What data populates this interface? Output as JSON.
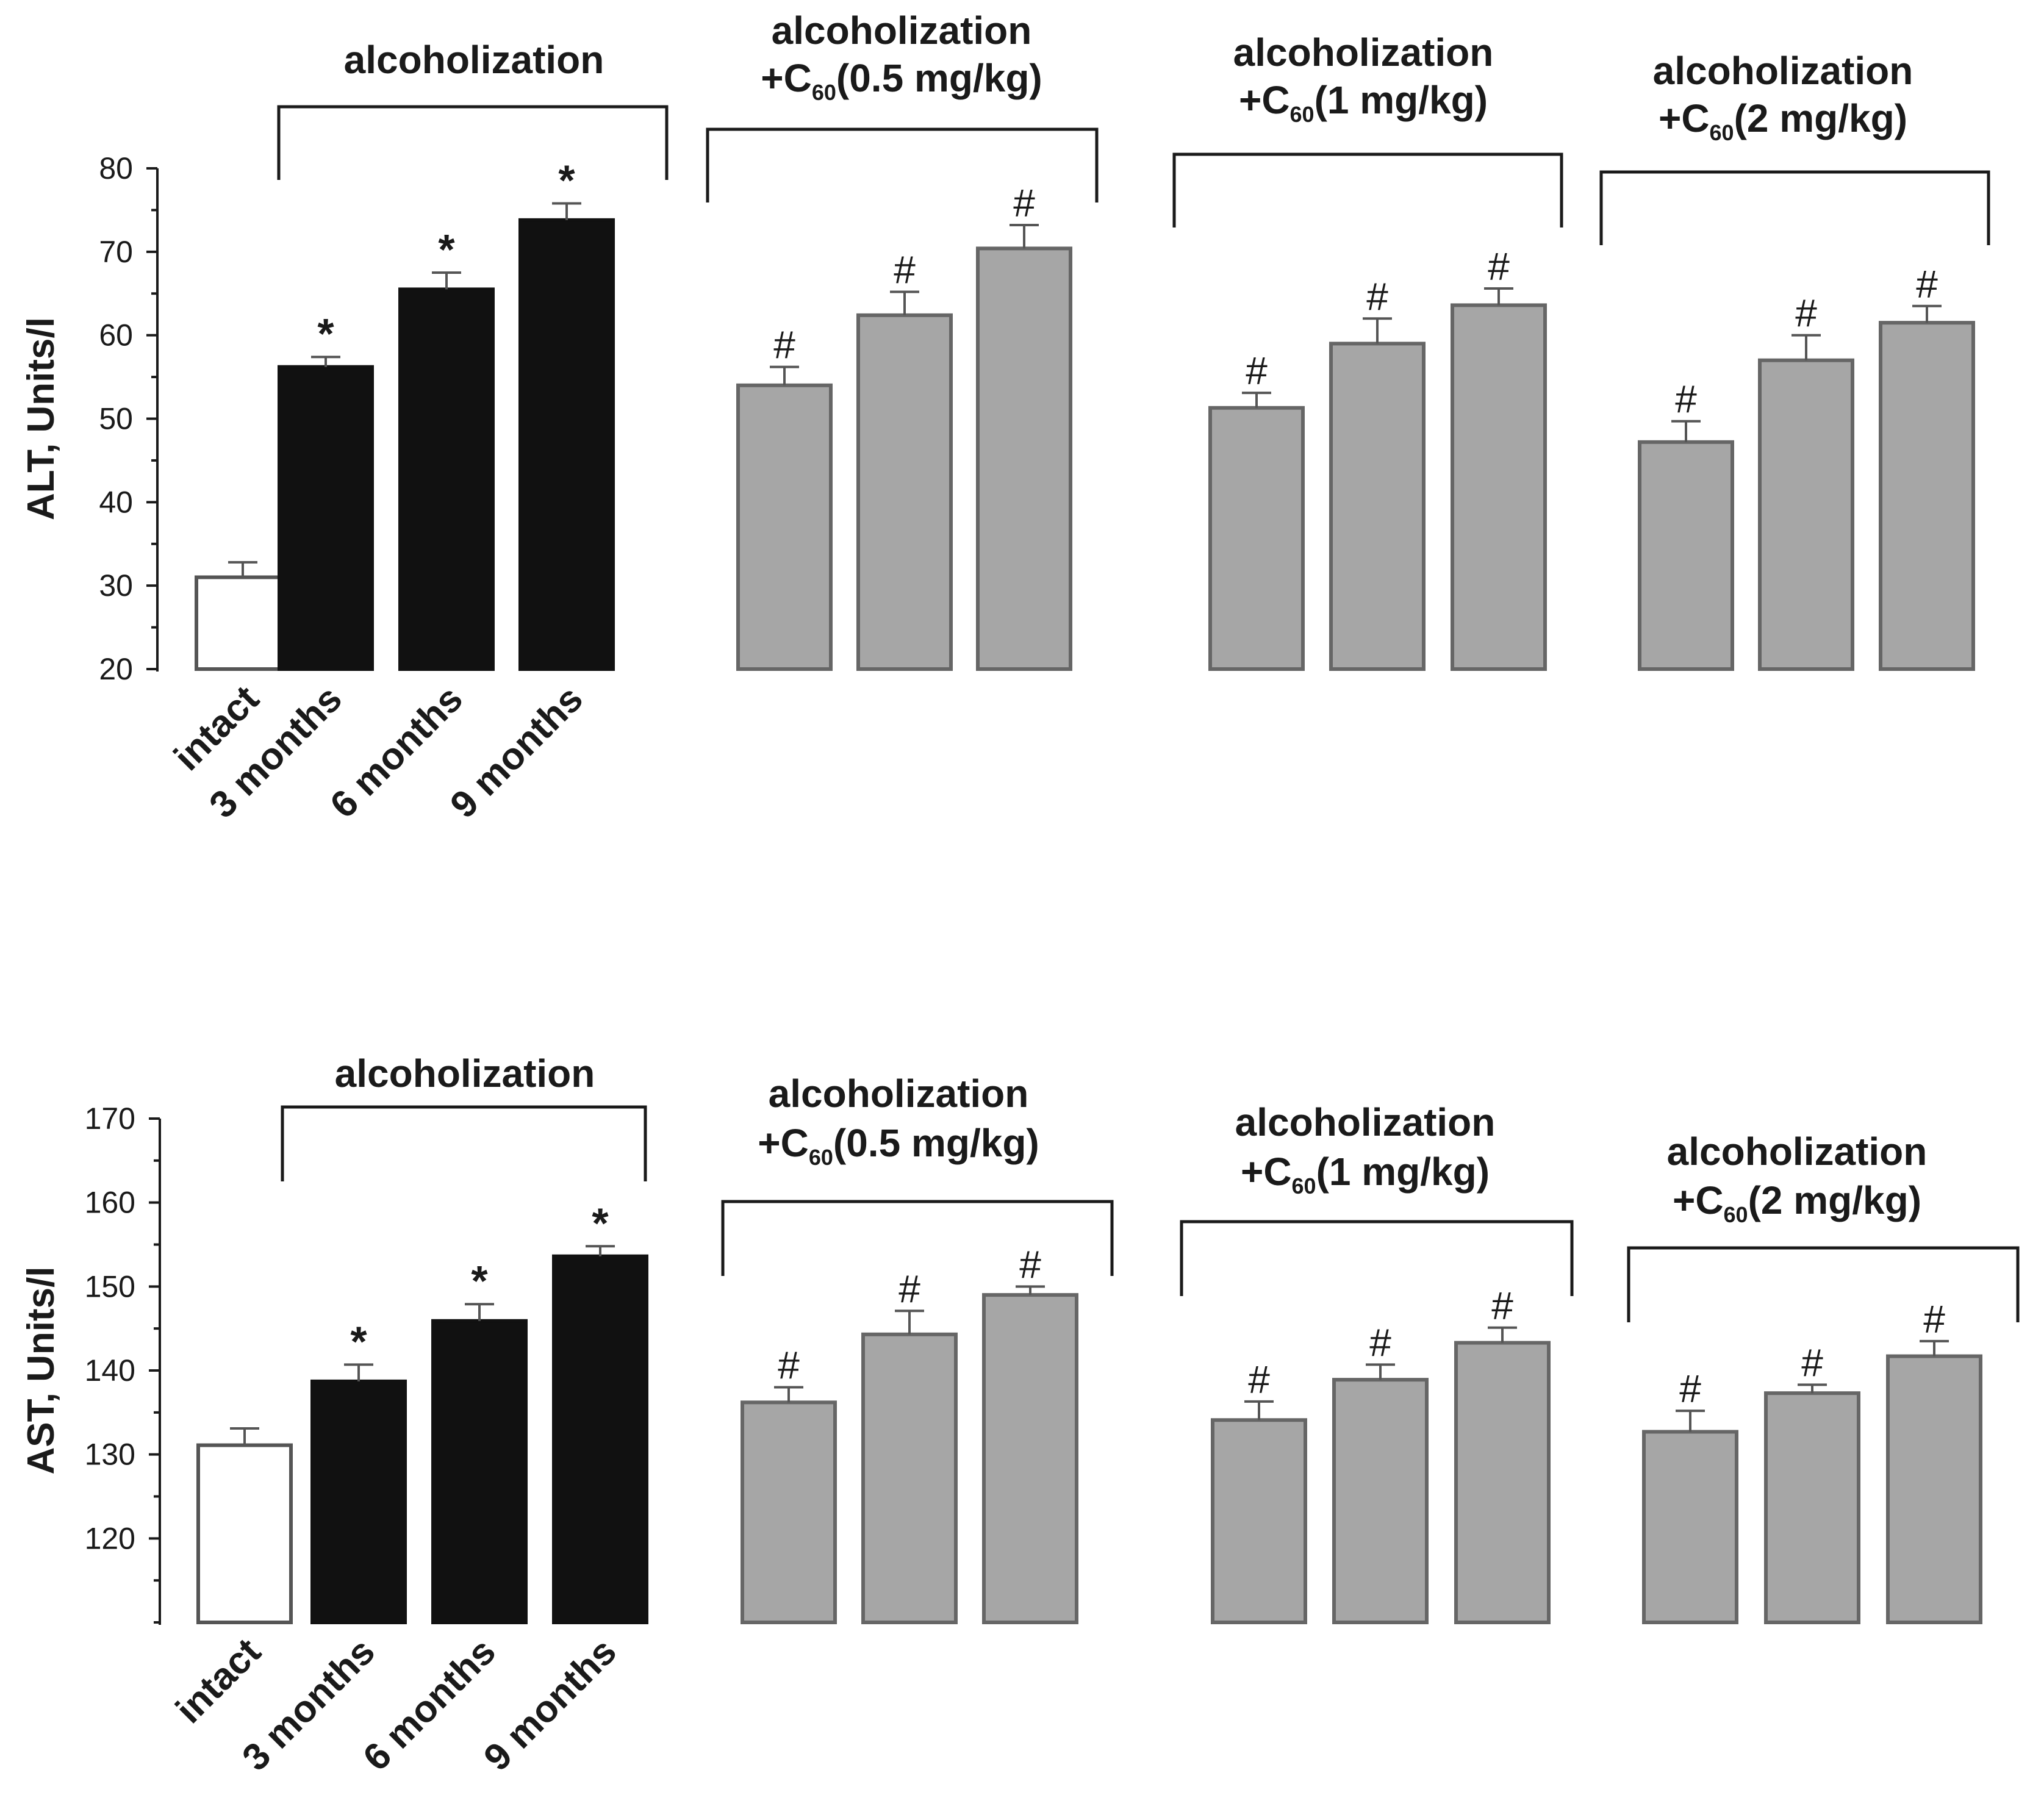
{
  "chart_data": [
    {
      "type": "bar",
      "ylabel": "ALT, Units/l",
      "ylim": [
        20,
        80
      ],
      "yticks": [
        20,
        30,
        40,
        50,
        60,
        70,
        80
      ],
      "categories": [
        "intact",
        "3 months",
        "6 months",
        "9 months"
      ],
      "groups": [
        {
          "name": "alcoholization",
          "title": [
            "alcoholization"
          ],
          "color": "#111111",
          "bars": [
            {
              "category": "3 months",
              "value": 56.2,
              "error": 1.2,
              "marker": "*"
            },
            {
              "category": "6 months",
              "value": 65.5,
              "error": 2.0,
              "marker": "*"
            },
            {
              "category": "9 months",
              "value": 73.8,
              "error": 2.0,
              "marker": "*"
            }
          ]
        },
        {
          "name": "alcoholization +C60(0.5 mg/kg)",
          "title": [
            "alcoholization",
            "+C",
            "60",
            "(0.5 mg/kg)"
          ],
          "color": "#a6a6a6",
          "bars": [
            {
              "category": "3 months",
              "value": 54.0,
              "error": 2.2,
              "marker": "#"
            },
            {
              "category": "6 months",
              "value": 62.4,
              "error": 2.8,
              "marker": "#"
            },
            {
              "category": "9 months",
              "value": 70.4,
              "error": 2.8,
              "marker": "#"
            }
          ]
        },
        {
          "name": "alcoholization +C60(1 mg/kg)",
          "title": [
            "alcoholization",
            "+C",
            "60",
            "(1 mg/kg)"
          ],
          "color": "#a6a6a6",
          "bars": [
            {
              "category": "3 months",
              "value": 51.3,
              "error": 1.8,
              "marker": "#"
            },
            {
              "category": "6 months",
              "value": 59.0,
              "error": 3.0,
              "marker": "#"
            },
            {
              "category": "9 months",
              "value": 63.6,
              "error": 2.0,
              "marker": "#"
            }
          ]
        },
        {
          "name": "alcoholization +C60(2 mg/kg)",
          "title": [
            "alcoholization",
            "+C",
            "60",
            "(2 mg/kg)"
          ],
          "color": "#a6a6a6",
          "bars": [
            {
              "category": "3 months",
              "value": 47.2,
              "error": 2.5,
              "marker": "#"
            },
            {
              "category": "6 months",
              "value": 57.0,
              "error": 3.0,
              "marker": "#"
            },
            {
              "category": "9 months",
              "value": 61.5,
              "error": 2.0,
              "marker": "#"
            }
          ]
        }
      ],
      "intact": {
        "category": "intact",
        "value": 31.0,
        "error": 1.8,
        "color": "#ffffff"
      }
    },
    {
      "type": "bar",
      "ylabel": "AST, Units/l",
      "ylim": [
        110,
        170
      ],
      "yticks": [
        120,
        130,
        140,
        150,
        160,
        170
      ],
      "categories": [
        "intact",
        "3 months",
        "6 months",
        "9 months"
      ],
      "groups": [
        {
          "name": "alcoholization",
          "title": [
            "alcoholization"
          ],
          "color": "#111111",
          "bars": [
            {
              "category": "3 months",
              "value": 138.7,
              "error": 2.0,
              "marker": "*"
            },
            {
              "category": "6 months",
              "value": 145.9,
              "error": 2.0,
              "marker": "*"
            },
            {
              "category": "9 months",
              "value": 153.6,
              "error": 1.2,
              "marker": "*"
            }
          ]
        },
        {
          "name": "alcoholization +C60(0.5 mg/kg)",
          "title": [
            "alcoholization",
            "+C",
            "60",
            "(0.5 mg/kg)"
          ],
          "color": "#a6a6a6",
          "bars": [
            {
              "category": "3 months",
              "value": 136.2,
              "error": 1.8,
              "marker": "#"
            },
            {
              "category": "6 months",
              "value": 144.3,
              "error": 2.8,
              "marker": "#"
            },
            {
              "category": "9 months",
              "value": 149.0,
              "error": 1.0,
              "marker": "#"
            }
          ]
        },
        {
          "name": "alcoholization +C60(1 mg/kg)",
          "title": [
            "alcoholization",
            "+C",
            "60",
            "(1 mg/kg)"
          ],
          "color": "#a6a6a6",
          "bars": [
            {
              "category": "3 months",
              "value": 134.1,
              "error": 2.2,
              "marker": "#"
            },
            {
              "category": "6 months",
              "value": 138.9,
              "error": 1.8,
              "marker": "#"
            },
            {
              "category": "9 months",
              "value": 143.3,
              "error": 1.8,
              "marker": "#"
            }
          ]
        },
        {
          "name": "alcoholization +C60(2 mg/kg)",
          "title": [
            "alcoholization",
            "+C",
            "60",
            "(2 mg/kg)"
          ],
          "color": "#a6a6a6",
          "bars": [
            {
              "category": "3 months",
              "value": 132.7,
              "error": 2.5,
              "marker": "#"
            },
            {
              "category": "6 months",
              "value": 137.3,
              "error": 1.0,
              "marker": "#"
            },
            {
              "category": "9 months",
              "value": 141.7,
              "error": 1.8,
              "marker": "#"
            }
          ]
        }
      ],
      "intact": {
        "category": "intact",
        "value": 131.1,
        "error": 2.0,
        "color": "#ffffff"
      }
    }
  ]
}
